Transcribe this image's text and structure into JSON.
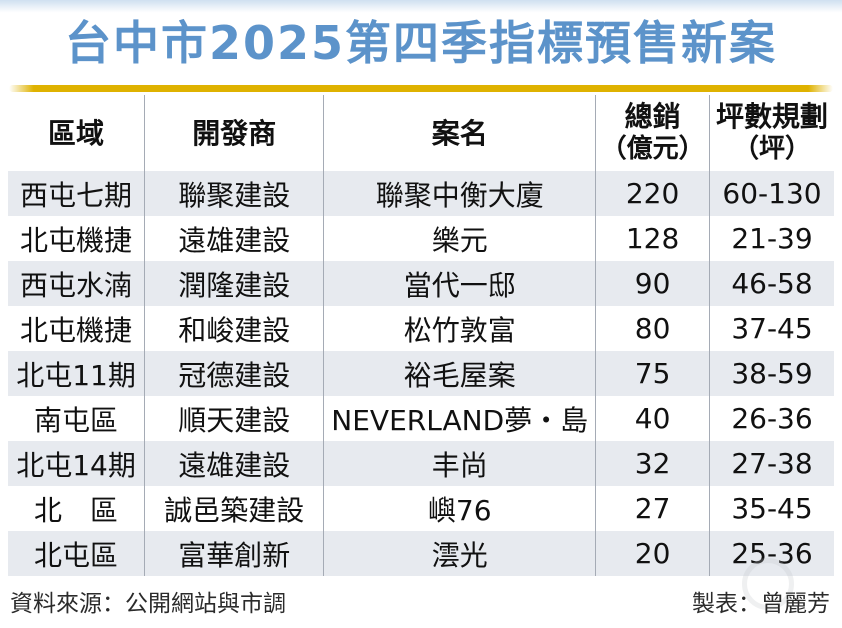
{
  "title": "台中市2025第四季指標預售新案",
  "colors": {
    "title_blue": "#5C93CA",
    "rule_gold": "#DFB200",
    "row_stripe": "#E7EAEF",
    "divider_gray": "#A5ABB5",
    "top_band_blue": "#CFE0F0"
  },
  "table": {
    "columns": [
      {
        "label": "區域",
        "sub": ""
      },
      {
        "label": "開發商",
        "sub": ""
      },
      {
        "label": "案名",
        "sub": ""
      },
      {
        "label": "總銷",
        "sub": "（億元）"
      },
      {
        "label": "坪數規劃",
        "sub": "（坪）"
      }
    ],
    "rows": [
      [
        "西屯七期",
        "聯聚建設",
        "聯聚中衡大廈",
        "220",
        "60-130"
      ],
      [
        "北屯機捷",
        "遠雄建設",
        "樂元",
        "128",
        "21-39"
      ],
      [
        "西屯水湳",
        "潤隆建設",
        "當代一邸",
        "90",
        "46-58"
      ],
      [
        "北屯機捷",
        "和峻建設",
        "松竹敦富",
        "80",
        "37-45"
      ],
      [
        "北屯11期",
        "冠德建設",
        "裕毛屋案",
        "75",
        "38-59"
      ],
      [
        "南屯區",
        "順天建設",
        "NEVERLAND夢・島",
        "40",
        "26-36"
      ],
      [
        "北屯14期",
        "遠雄建設",
        "丰尚",
        "32",
        "27-38"
      ],
      [
        "北　區",
        "誠邑築建設",
        "嶼76",
        "27",
        "35-45"
      ],
      [
        "北屯區",
        "富華創新",
        "澐光",
        "20",
        "25-36"
      ]
    ]
  },
  "footer": {
    "source": "資料來源：公開網站與市調",
    "credit": "製表：曾麗芳"
  },
  "chart_data": {
    "type": "table",
    "title": "台中市2025第四季指標預售新案",
    "columns": [
      "區域",
      "開發商",
      "案名",
      "總銷（億元）",
      "坪數規劃（坪）"
    ],
    "rows": [
      {
        "district": "西屯七期",
        "developer": "聯聚建設",
        "project": "聯聚中衡大廈",
        "total_sales_100m_ntd": 220,
        "size_range_ping": "60-130"
      },
      {
        "district": "北屯機捷",
        "developer": "遠雄建設",
        "project": "樂元",
        "total_sales_100m_ntd": 128,
        "size_range_ping": "21-39"
      },
      {
        "district": "西屯水湳",
        "developer": "潤隆建設",
        "project": "當代一邸",
        "total_sales_100m_ntd": 90,
        "size_range_ping": "46-58"
      },
      {
        "district": "北屯機捷",
        "developer": "和峻建設",
        "project": "松竹敦富",
        "total_sales_100m_ntd": 80,
        "size_range_ping": "37-45"
      },
      {
        "district": "北屯11期",
        "developer": "冠德建設",
        "project": "裕毛屋案",
        "total_sales_100m_ntd": 75,
        "size_range_ping": "38-59"
      },
      {
        "district": "南屯區",
        "developer": "順天建設",
        "project": "NEVERLAND夢・島",
        "total_sales_100m_ntd": 40,
        "size_range_ping": "26-36"
      },
      {
        "district": "北屯14期",
        "developer": "遠雄建設",
        "project": "丰尚",
        "total_sales_100m_ntd": 32,
        "size_range_ping": "27-38"
      },
      {
        "district": "北　區",
        "developer": "誠邑築建設",
        "project": "嶼76",
        "total_sales_100m_ntd": 27,
        "size_range_ping": "35-45"
      },
      {
        "district": "北屯區",
        "developer": "富華創新",
        "project": "澐光",
        "total_sales_100m_ntd": 20,
        "size_range_ping": "25-36"
      }
    ],
    "source_note": "資料來源：公開網站與市調",
    "credit_note": "製表：曾麗芳"
  }
}
